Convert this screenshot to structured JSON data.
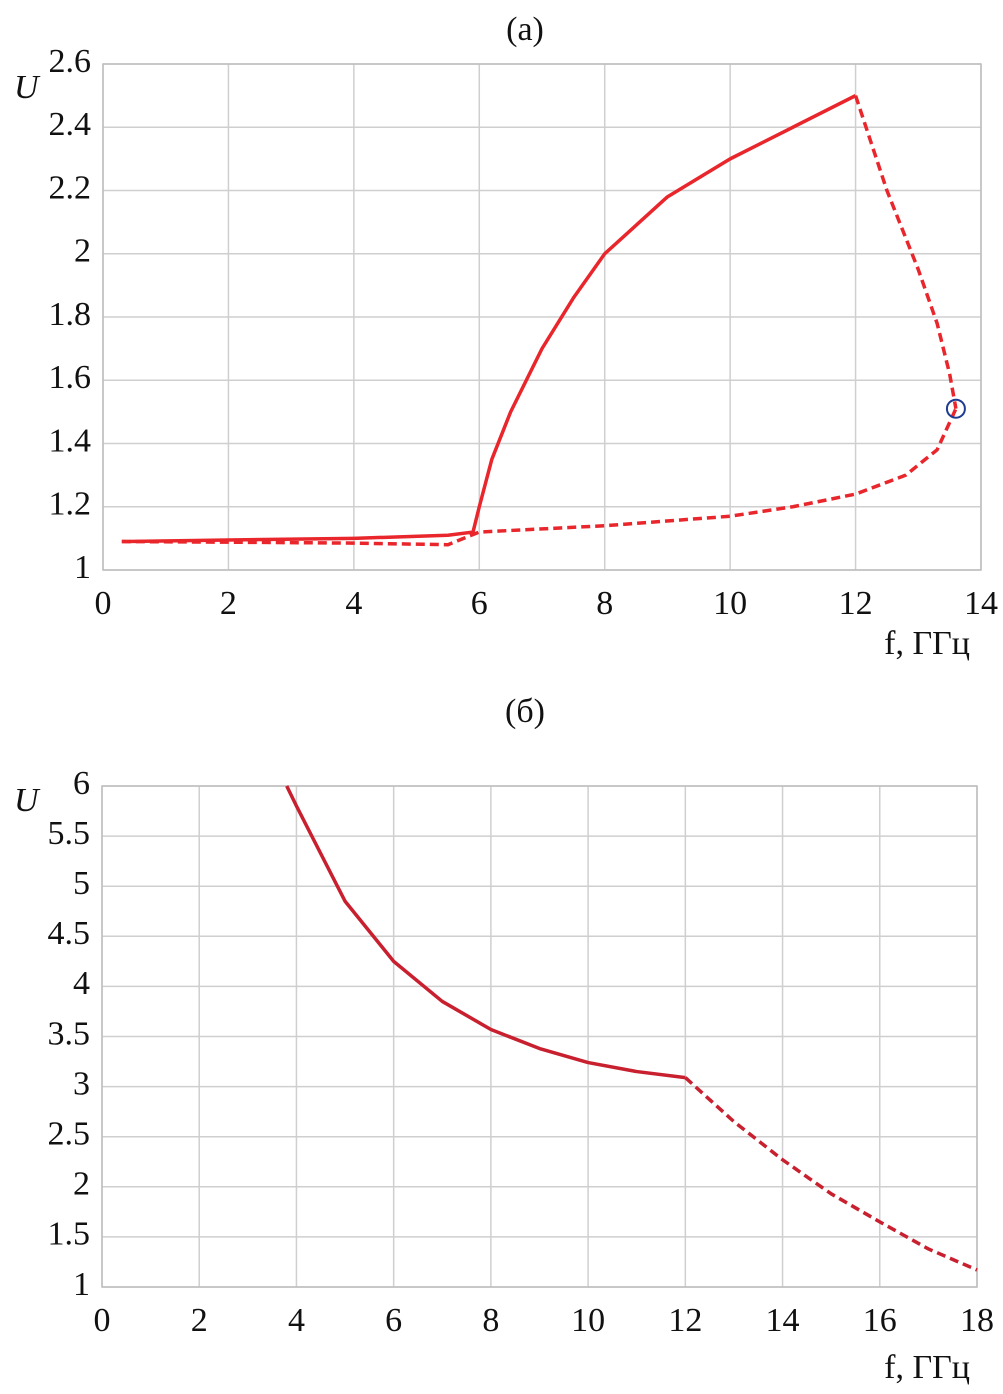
{
  "chart_data": [
    {
      "type": "line",
      "title": "(а)",
      "ylabel": "U",
      "xlabel": "f, ГГц",
      "xlim": [
        0,
        14
      ],
      "xticks": [
        0,
        2,
        4,
        6,
        8,
        10,
        12,
        14
      ],
      "ylim": [
        1,
        2.6
      ],
      "yticks": [
        1,
        1.2,
        1.4,
        1.6,
        1.8,
        2,
        2.2,
        2.4,
        2.6
      ],
      "grid": true,
      "series": [
        {
          "color": "#e8262b",
          "line_style": "solid",
          "x": [
            0.3,
            2,
            4,
            5.5,
            5.9,
            6.0,
            6.2,
            6.5,
            7,
            7.5,
            8,
            9,
            10,
            11,
            12
          ],
          "values": [
            1.09,
            1.095,
            1.1,
            1.11,
            1.12,
            1.2,
            1.35,
            1.5,
            1.7,
            1.86,
            2.0,
            2.18,
            2.3,
            2.4,
            2.5
          ]
        },
        {
          "color": "#e8262b",
          "line_style": "dashed",
          "x": [
            12,
            12.5,
            13,
            13.3,
            13.5,
            13.6
          ],
          "values": [
            2.5,
            2.2,
            1.95,
            1.78,
            1.62,
            1.51
          ]
        },
        {
          "color": "#e8262b",
          "line_style": "dashed",
          "x": [
            0.3,
            2,
            4,
            5.5,
            6,
            8,
            10,
            11,
            12,
            12.8,
            13.3,
            13.6
          ],
          "values": [
            1.09,
            1.088,
            1.085,
            1.08,
            1.12,
            1.14,
            1.17,
            1.2,
            1.24,
            1.3,
            1.38,
            1.51
          ]
        },
        {
          "color": "#1f3a93",
          "line_style": "none",
          "marker": "circle",
          "x": [
            13.6
          ],
          "values": [
            1.51
          ]
        }
      ]
    },
    {
      "type": "line",
      "title": "(б)",
      "ylabel": "U",
      "xlabel": "f, ГГц",
      "xlim": [
        0,
        18
      ],
      "xticks": [
        0,
        2,
        4,
        6,
        8,
        10,
        12,
        14,
        16,
        18
      ],
      "ylim": [
        1,
        6
      ],
      "yticks": [
        1,
        1.5,
        2,
        2.5,
        3,
        3.5,
        4,
        4.5,
        5,
        5.5,
        6
      ],
      "grid": true,
      "series": [
        {
          "color": "#c8202f",
          "line_style": "solid",
          "x": [
            3.8,
            4,
            5,
            6,
            7,
            8,
            9,
            10,
            11,
            12
          ],
          "values": [
            6.0,
            5.8,
            4.85,
            4.25,
            3.85,
            3.57,
            3.38,
            3.24,
            3.15,
            3.09
          ]
        },
        {
          "color": "#c8202f",
          "line_style": "dashed",
          "x": [
            12,
            13,
            14,
            15,
            16,
            17,
            18
          ],
          "values": [
            3.09,
            2.65,
            2.27,
            1.93,
            1.65,
            1.38,
            1.17
          ]
        }
      ]
    }
  ]
}
